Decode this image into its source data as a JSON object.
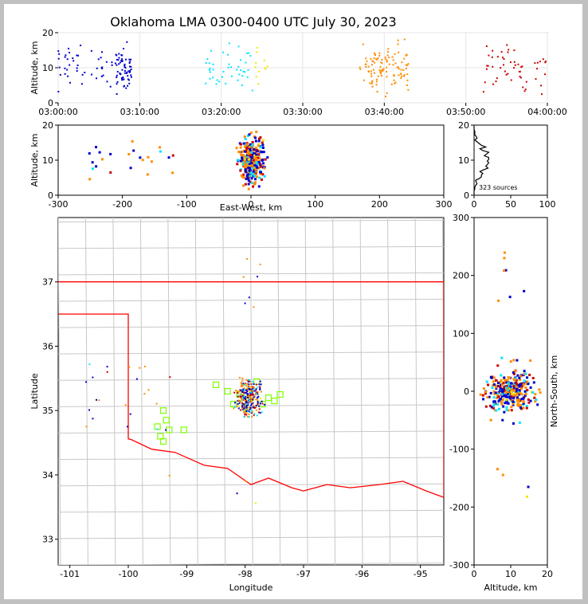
{
  "chart_data": [
    {
      "id": "time_altitude",
      "type": "scatter",
      "title": "Oklahoma LMA 0300-0400 UTC July 30, 2023",
      "xlabel": "",
      "ylabel": "Altitude, km",
      "x_tick_labels": [
        "03:00:00",
        "03:10:00",
        "03:20:00",
        "03:30:00",
        "03:40:00",
        "03:50:00",
        "04:00:00"
      ],
      "xlim_minutes": [
        0,
        60
      ],
      "ylim": [
        0,
        20
      ],
      "y_ticks": [
        0,
        10,
        20
      ],
      "color_by": "time",
      "colors": [
        "#0000cc",
        "#00e5ff",
        "#f2e600",
        "#ff8c00",
        "#cc0000"
      ]
    },
    {
      "id": "eastwest_altitude",
      "type": "scatter",
      "xlabel": "East-West, km",
      "ylabel": "Altitude, km",
      "xlim": [
        -300,
        300
      ],
      "x_ticks": [
        -300,
        -200,
        -100,
        0,
        100,
        200,
        300
      ],
      "ylim": [
        0,
        20
      ],
      "y_ticks": [
        0,
        10,
        20
      ]
    },
    {
      "id": "altitude_histogram",
      "type": "line",
      "annotation": "323 sources",
      "xlim": [
        0,
        100
      ],
      "x_ticks": [
        0,
        50,
        100
      ],
      "ylim": [
        0,
        20
      ],
      "y_ticks": [
        0,
        10,
        20
      ]
    },
    {
      "id": "plan_view_map",
      "type": "scatter",
      "xlabel": "Longitude",
      "ylabel": "Latitude",
      "xlim": [
        -101.2,
        -94.6
      ],
      "x_ticks": [
        -101,
        -100,
        -99,
        -98,
        -97,
        -96,
        -95
      ],
      "ylim": [
        32.6,
        38.0
      ],
      "y_ticks": [
        33,
        34,
        35,
        36,
        37
      ],
      "stations_lonlat": [
        [
          -98.5,
          35.4
        ],
        [
          -98.3,
          35.3
        ],
        [
          -98.1,
          35.25
        ],
        [
          -97.9,
          35.2
        ],
        [
          -97.8,
          35.45
        ],
        [
          -97.6,
          35.2
        ],
        [
          -97.5,
          35.15
        ],
        [
          -97.4,
          35.25
        ],
        [
          -98.0,
          35.05
        ],
        [
          -97.7,
          35.1
        ],
        [
          -99.4,
          35.0
        ],
        [
          -99.35,
          34.85
        ],
        [
          -99.5,
          34.75
        ],
        [
          -99.3,
          34.7
        ],
        [
          -99.45,
          34.6
        ],
        [
          -99.4,
          34.52
        ],
        [
          -99.05,
          34.7
        ],
        [
          -98.2,
          35.1
        ]
      ],
      "station_color": "#7fff00",
      "state_border_color": "#ff0000",
      "county_line_color": "#c8c8c8"
    },
    {
      "id": "altitude_northsouth",
      "type": "scatter",
      "xlabel": "Altitude, km",
      "ylabel": "North-South, km",
      "xlim": [
        0,
        20
      ],
      "x_ticks": [
        0,
        10,
        20
      ],
      "ylim": [
        -300,
        300
      ],
      "y_ticks": [
        -300,
        -200,
        -100,
        0,
        100,
        200,
        300
      ]
    }
  ]
}
